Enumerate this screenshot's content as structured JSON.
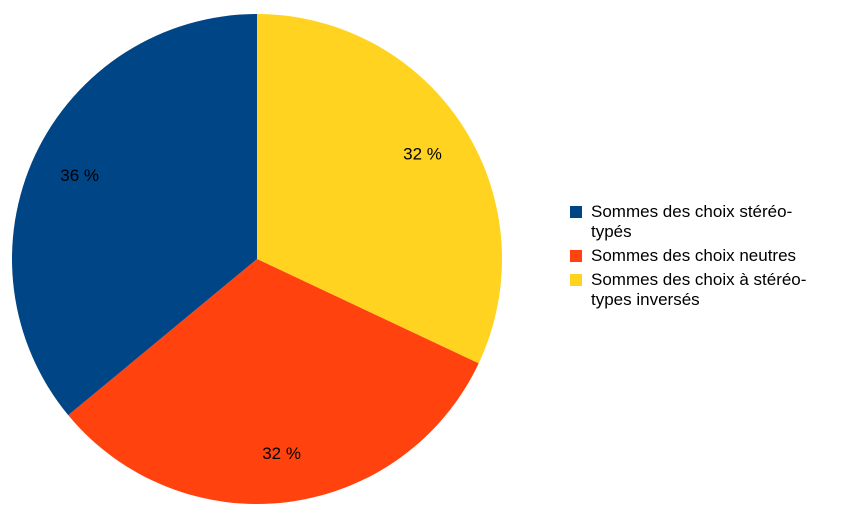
{
  "chart_data": {
    "type": "pie",
    "title": "",
    "legend_position": "right",
    "start_angle_deg": 0,
    "direction": "clockwise",
    "slices": [
      {
        "name": "Sommes des choix à stéréotypes inversés",
        "value": 32,
        "label": "32 %",
        "color": "#ffd320"
      },
      {
        "name": "Sommes des choix neutres",
        "value": 32,
        "label": "32 %",
        "color": "#ff420e"
      },
      {
        "name": "Sommes des choix stéréotypés",
        "value": 36,
        "label": "36 %",
        "color": "#004586"
      }
    ]
  },
  "legend": {
    "items": [
      {
        "line1": "Sommes des choix stéréo-",
        "line2": "typés",
        "color": "#004586"
      },
      {
        "line1": "Sommes des choix neutres",
        "line2": "",
        "color": "#ff420e"
      },
      {
        "line1": "Sommes des choix à stéréo-",
        "line2": "types inversés",
        "color": "#ffd320"
      }
    ]
  }
}
